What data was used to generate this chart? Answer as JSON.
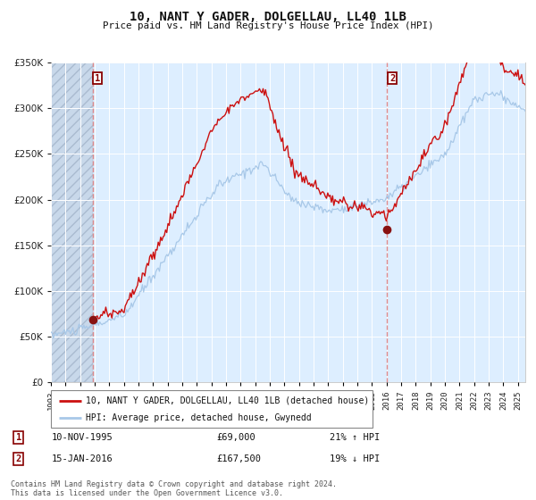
{
  "title": "10, NANT Y GADER, DOLGELLAU, LL40 1LB",
  "subtitle": "Price paid vs. HM Land Registry's House Price Index (HPI)",
  "legend_line1": "10, NANT Y GADER, DOLGELLAU, LL40 1LB (detached house)",
  "legend_line2": "HPI: Average price, detached house, Gwynedd",
  "footnote": "Contains HM Land Registry data © Crown copyright and database right 2024.\nThis data is licensed under the Open Government Licence v3.0.",
  "transaction1": {
    "label": "1",
    "date": "10-NOV-1995",
    "price": "£69,000",
    "hpi": "21% ↑ HPI"
  },
  "transaction2": {
    "label": "2",
    "date": "15-JAN-2016",
    "price": "£167,500",
    "hpi": "19% ↓ HPI"
  },
  "sale1_year": 1995.87,
  "sale1_price": 69000,
  "sale2_year": 2016.04,
  "sale2_price": 167500,
  "hpi_color": "#a8c8e8",
  "price_color": "#cc1111",
  "sale_dot_color": "#881111",
  "vline_color": "#e08080",
  "background_color": "#ddeeff",
  "ylim": [
    0,
    350000
  ],
  "xlim_start": 1993.0,
  "xlim_end": 2025.5,
  "yticks": [
    0,
    50000,
    100000,
    150000,
    200000,
    250000,
    300000,
    350000
  ]
}
